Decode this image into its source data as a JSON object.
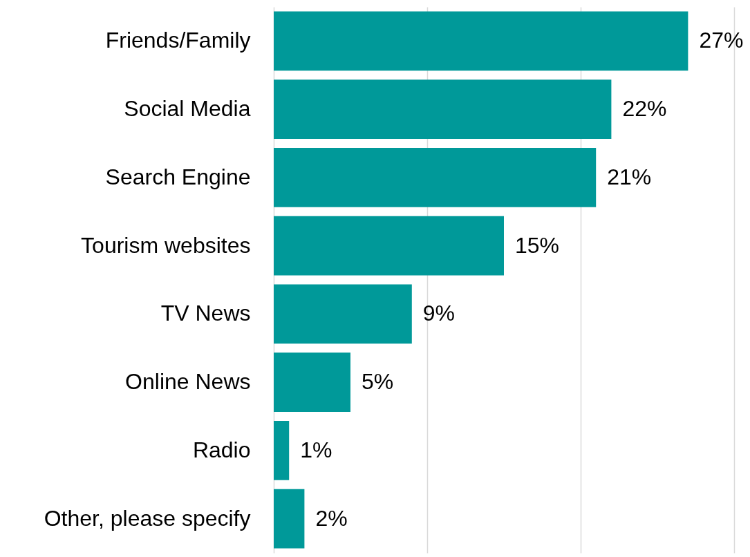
{
  "chart_data": {
    "type": "bar",
    "orientation": "horizontal",
    "categories": [
      "Friends/Family",
      "Social Media",
      "Search Engine",
      "Tourism websites",
      "TV News",
      "Online News",
      "Radio",
      "Other, please specify"
    ],
    "values": [
      27,
      22,
      21,
      15,
      9,
      5,
      1,
      2
    ],
    "value_labels": [
      "27%",
      "22%",
      "21%",
      "15%",
      "9%",
      "5%",
      "1%",
      "2%"
    ],
    "color": "#009999",
    "xlim": [
      0,
      30
    ],
    "xticks": [
      {
        "value": 0,
        "label": null
      },
      {
        "value": 10,
        "label": null
      },
      {
        "value": 20,
        "label": null
      },
      {
        "value": 30,
        "label": null
      }
    ],
    "grid": "x",
    "tick_labels": "y"
  }
}
